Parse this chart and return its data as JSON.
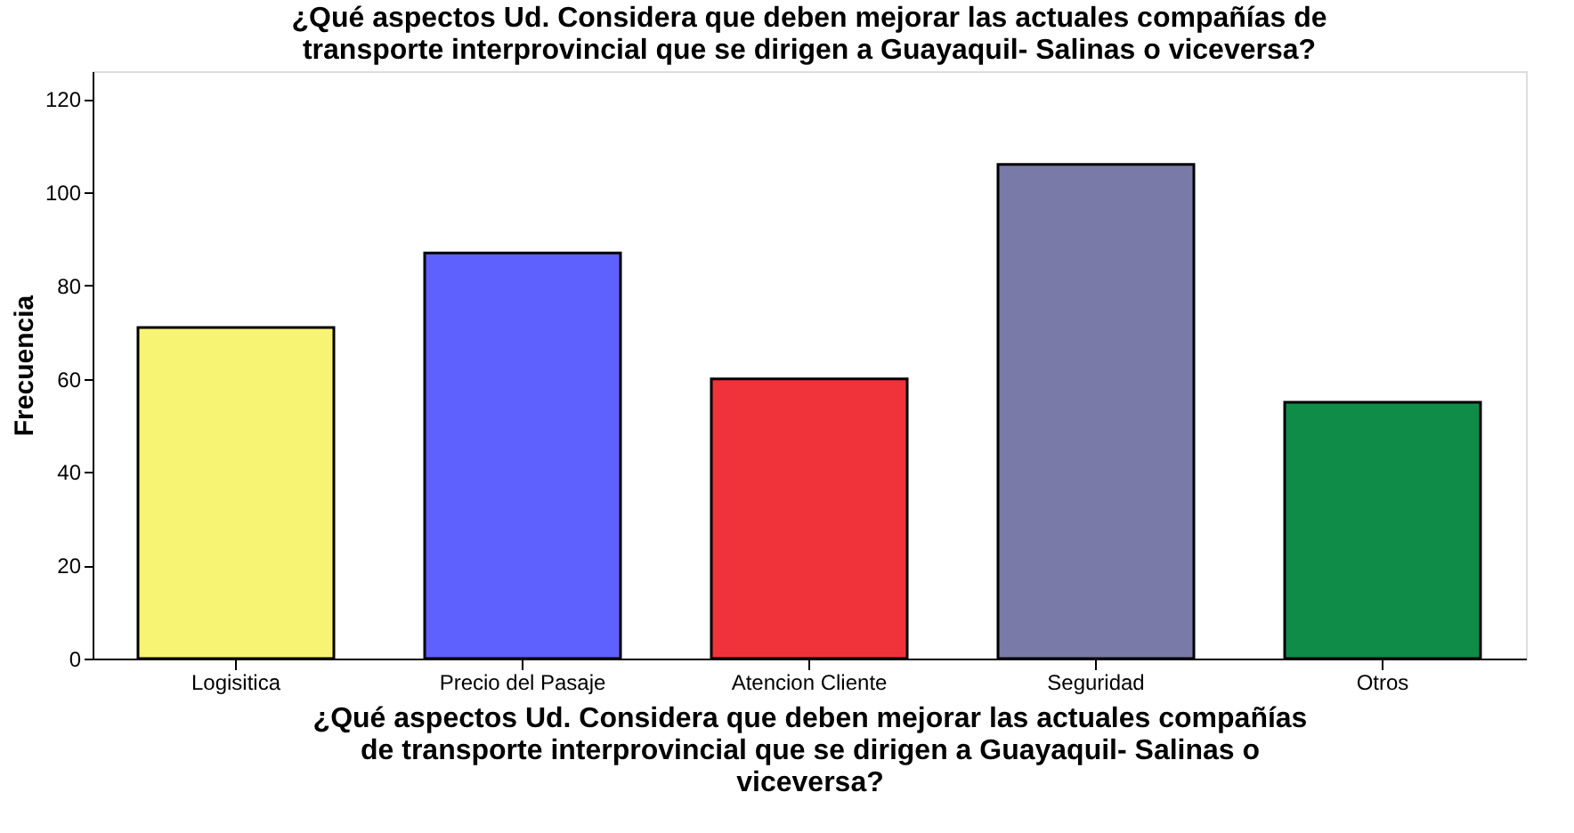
{
  "chart_data": {
    "type": "bar",
    "title": "¿Qué aspectos Ud. Considera que  deben mejorar  las actuales compañías de\ntransporte interprovincial  que se dirigen a Guayaquil- Salinas o viceversa?",
    "xlabel": "¿Qué aspectos Ud. Considera que  deben mejorar  las actuales compañías\nde transporte interprovincial  que se dirigen a Guayaquil- Salinas o\nviceversa?",
    "ylabel": "Frecuencia",
    "categories": [
      "Logisitica",
      "Precio del Pasaje",
      "Atencion Cliente",
      "Seguridad",
      "Otros"
    ],
    "values": [
      71,
      87,
      60,
      106,
      55
    ],
    "colors": [
      "#f8f473",
      "#5f61fe",
      "#f0333a",
      "#7a7aa8",
      "#0f8c48"
    ],
    "ylim": [
      0,
      126
    ],
    "yticks": [
      0,
      20,
      40,
      60,
      80,
      100,
      120
    ],
    "grid": false
  }
}
